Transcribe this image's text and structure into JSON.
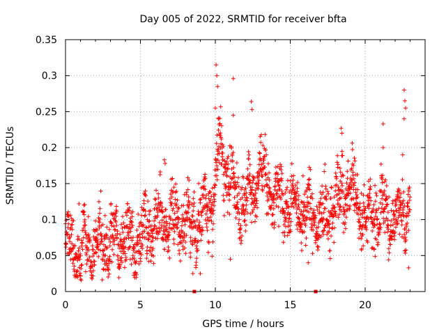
{
  "chart_data": {
    "type": "scatter",
    "title": "Day 005 of 2022, SRMTID for receiver bfta",
    "xlabel": "GPS time / hours",
    "ylabel": "SRMTID / TECUs",
    "xlim": [
      0,
      24
    ],
    "ylim": [
      0,
      0.35
    ],
    "x_ticks": [
      0,
      5,
      10,
      15,
      20
    ],
    "x_tick_labels": [
      "0",
      "5",
      "10",
      "15",
      "20"
    ],
    "y_ticks": [
      0,
      0.05,
      0.1,
      0.15,
      0.2,
      0.25,
      0.3,
      0.35
    ],
    "y_tick_labels": [
      "0",
      "0.05",
      "0.1",
      "0.15",
      "0.2",
      "0.25",
      "0.3",
      "0.35"
    ],
    "grid": true,
    "marker": "+",
    "series_color": "#ff0000",
    "zero_line_markers_x": [
      8.6,
      16.7
    ],
    "trend": [
      {
        "x": 0,
        "y": 0.06
      },
      {
        "x": 1,
        "y": 0.06
      },
      {
        "x": 2,
        "y": 0.065
      },
      {
        "x": 3,
        "y": 0.075
      },
      {
        "x": 4,
        "y": 0.065
      },
      {
        "x": 5,
        "y": 0.08
      },
      {
        "x": 6,
        "y": 0.09
      },
      {
        "x": 7,
        "y": 0.1
      },
      {
        "x": 8,
        "y": 0.095
      },
      {
        "x": 9,
        "y": 0.1
      },
      {
        "x": 9.9,
        "y": 0.13
      },
      {
        "x": 10.3,
        "y": 0.2
      },
      {
        "x": 10.8,
        "y": 0.17
      },
      {
        "x": 11.5,
        "y": 0.12
      },
      {
        "x": 12.5,
        "y": 0.14
      },
      {
        "x": 13,
        "y": 0.17
      },
      {
        "x": 14,
        "y": 0.13
      },
      {
        "x": 15,
        "y": 0.12
      },
      {
        "x": 16,
        "y": 0.11
      },
      {
        "x": 17,
        "y": 0.1
      },
      {
        "x": 18,
        "y": 0.12
      },
      {
        "x": 19,
        "y": 0.15
      },
      {
        "x": 20,
        "y": 0.1
      },
      {
        "x": 21,
        "y": 0.11
      },
      {
        "x": 22,
        "y": 0.1
      },
      {
        "x": 23,
        "y": 0.12
      }
    ],
    "spread": 0.028,
    "outliers": [
      {
        "x": 10.05,
        "y": 0.315
      },
      {
        "x": 10.1,
        "y": 0.3
      },
      {
        "x": 10.15,
        "y": 0.285
      },
      {
        "x": 11.2,
        "y": 0.296
      },
      {
        "x": 12.4,
        "y": 0.264
      },
      {
        "x": 12.45,
        "y": 0.253
      },
      {
        "x": 10.0,
        "y": 0.255
      },
      {
        "x": 10.2,
        "y": 0.24
      },
      {
        "x": 11.2,
        "y": 0.245
      },
      {
        "x": 22.6,
        "y": 0.28
      },
      {
        "x": 22.65,
        "y": 0.265
      },
      {
        "x": 22.7,
        "y": 0.255
      },
      {
        "x": 22.6,
        "y": 0.24
      },
      {
        "x": 21.2,
        "y": 0.233
      },
      {
        "x": 18.4,
        "y": 0.227
      },
      {
        "x": 18.45,
        "y": 0.22
      },
      {
        "x": 21.2,
        "y": 0.2
      },
      {
        "x": 22.5,
        "y": 0.19
      },
      {
        "x": 6.6,
        "y": 0.183
      },
      {
        "x": 6.65,
        "y": 0.178
      },
      {
        "x": 0.9,
        "y": 0.122
      },
      {
        "x": 8.5,
        "y": 0.025
      },
      {
        "x": 9.0,
        "y": 0.025
      },
      {
        "x": 22.9,
        "y": 0.033
      },
      {
        "x": 0.8,
        "y": 0.02
      },
      {
        "x": 11.0,
        "y": 0.045
      },
      {
        "x": 16.2,
        "y": 0.04
      }
    ]
  }
}
